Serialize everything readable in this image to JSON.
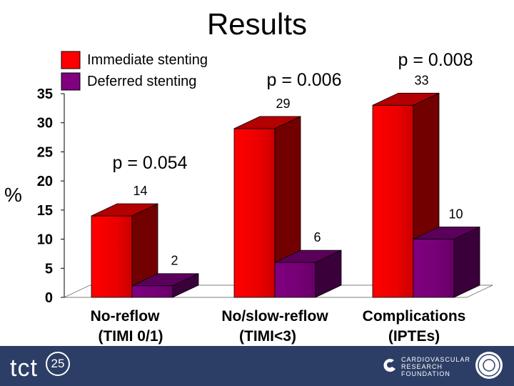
{
  "title": "Results",
  "chart_data": {
    "type": "bar",
    "categories": [
      "No-reflow\n(TIMI 0/1)",
      "No/slow-reflow\n(TIMI<3)",
      "Complications\n(IPTEs)"
    ],
    "series": [
      {
        "name": "Immediate stenting",
        "values": [
          14,
          29,
          33
        ],
        "color": "#ff0000"
      },
      {
        "name": "Deferred stenting",
        "values": [
          2,
          6,
          10
        ],
        "color": "#800080"
      }
    ],
    "p_values": [
      "p = 0.054",
      "p = 0.006",
      "p = 0.008"
    ],
    "ylabel": "%",
    "yticks": [
      0,
      5,
      10,
      15,
      20,
      25,
      30,
      35
    ],
    "ylim": [
      0,
      35
    ],
    "legend_position": "top-left"
  },
  "footer": {
    "logo_text": "tct",
    "logo_number": "25",
    "crf_lines": [
      "CARDIOVASCULAR",
      "RESEARCH",
      "FOUNDATION"
    ]
  }
}
